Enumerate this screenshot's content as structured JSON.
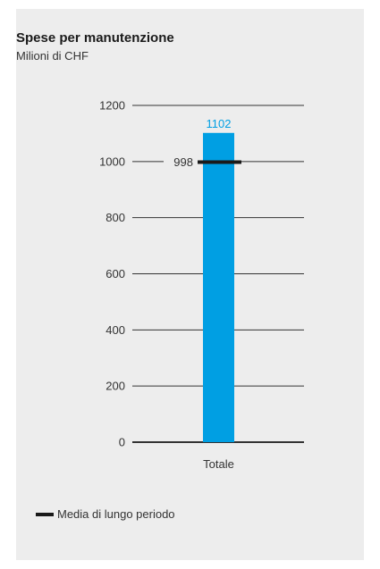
{
  "chart_data": {
    "type": "bar",
    "title": "Spese per manutenzione",
    "subtitle": "Milioni di CHF",
    "categories": [
      "Totale"
    ],
    "values": [
      1102
    ],
    "value_labels": [
      "1102"
    ],
    "ylim": [
      0,
      1200
    ],
    "yticks": [
      "0",
      "200",
      "400",
      "600",
      "800",
      "1000",
      "1200"
    ],
    "grid": true,
    "reference": {
      "name": "Media di lungo periodo",
      "value": 998,
      "label": "998"
    },
    "legend": [
      {
        "label": "Media di lungo periodo",
        "marker": "line"
      }
    ],
    "colors": {
      "bar": "#009fe3",
      "value_label": "#009fe3",
      "reference": "#1a1a1a",
      "grid": "#333333",
      "background": "#ededed"
    }
  }
}
